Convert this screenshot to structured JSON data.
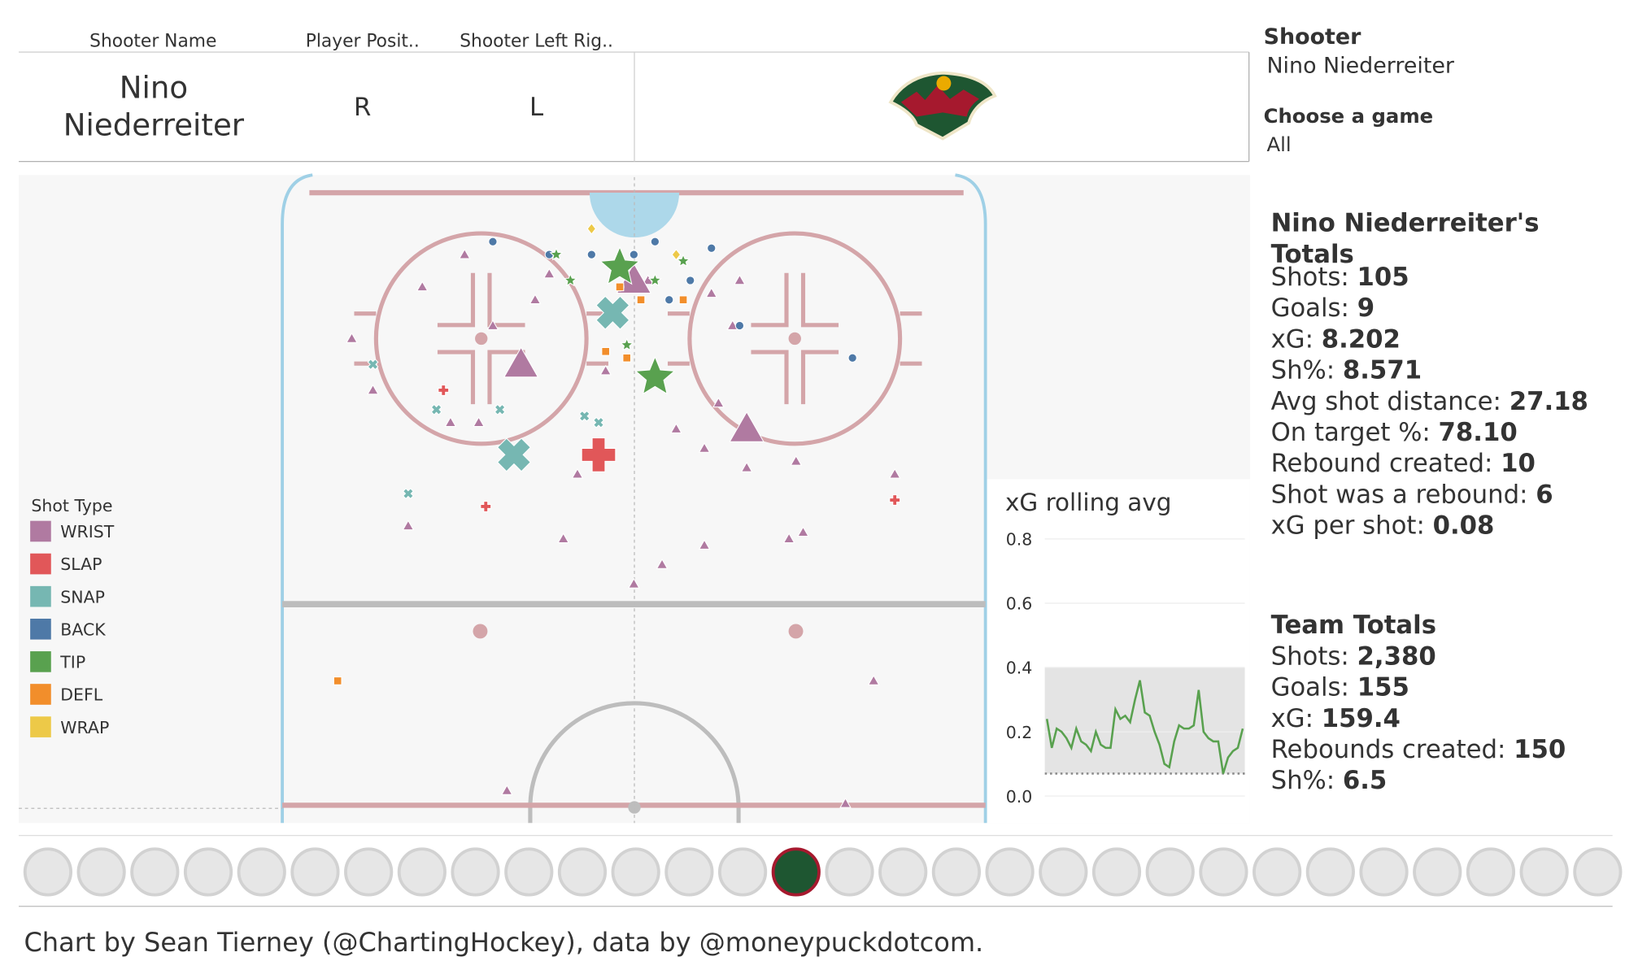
{
  "header": {
    "columns": [
      "Shooter Name",
      "Player Posit..",
      "Shooter Left Rig.."
    ],
    "values": [
      "Nino Niederreiter",
      "R",
      "L"
    ]
  },
  "filters": [
    {
      "label": "Shooter",
      "value": "Nino Niederreiter"
    },
    {
      "label": "Choose a game",
      "value": "All"
    }
  ],
  "player_totals": {
    "title": "Nino Niederreiter's Totals",
    "items": [
      {
        "label": "Shots:",
        "value": "105"
      },
      {
        "label": "Goals:",
        "value": "9"
      },
      {
        "label": "xG:",
        "value": "8.202"
      },
      {
        "label": "Sh%:",
        "value": "8.571"
      },
      {
        "label": "Avg shot distance:",
        "value": "27.18"
      },
      {
        "label": "On target %:",
        "value": "78.10"
      },
      {
        "label": "Rebound created:",
        "value": "10"
      },
      {
        "label": "Shot was a rebound:",
        "value": "6"
      },
      {
        "label": "xG per shot:",
        "value": "0.08"
      }
    ]
  },
  "team_totals": {
    "title": "Team Totals",
    "items": [
      {
        "label": "Shots:",
        "value": "2,380"
      },
      {
        "label": "Goals:",
        "value": "155"
      },
      {
        "label": "xG:",
        "value": "159.4"
      },
      {
        "label": "Rebounds created:",
        "value": "150"
      },
      {
        "label": "Sh%:",
        "value": "6.5"
      }
    ]
  },
  "footer": "Chart by Sean Tierney (@ChartingHockey), data by @moneypuckdotcom.",
  "chart_data": [
    {
      "type": "scatter",
      "legend_title": "Shot Type",
      "xlim": [
        0,
        100
      ],
      "ylim": [
        100,
        0
      ],
      "series": [
        {
          "name": "WRIST",
          "color": "#b07aa1",
          "marker": "triangle",
          "x": [
            26,
            20,
            36,
            38,
            10,
            13,
            30,
            28,
            24,
            42,
            40,
            18,
            48,
            52,
            61,
            65,
            64,
            62,
            56,
            60,
            66,
            73,
            72,
            74,
            87,
            54,
            60,
            50,
            46,
            32,
            80,
            84,
            49,
            34,
            66,
            50
          ],
          "y": [
            12,
            17,
            19,
            15,
            25,
            33,
            23,
            38,
            38,
            46,
            56,
            54,
            12,
            16,
            18,
            16,
            23,
            35,
            39,
            42,
            45,
            44,
            56,
            55,
            46,
            60,
            57,
            63,
            30,
            95,
            97,
            78,
            15,
            29,
            39,
            16
          ],
          "sizes": [
            1,
            1,
            1,
            1,
            1,
            1,
            1,
            1,
            1,
            1,
            1,
            1,
            1,
            1,
            1,
            1,
            1,
            1,
            1,
            1,
            1,
            1,
            1,
            1,
            1,
            1,
            1,
            1,
            1,
            1,
            1,
            1,
            1,
            4,
            4,
            4
          ]
        },
        {
          "name": "SLAP",
          "color": "#e15759",
          "marker": "plus",
          "x": [
            23,
            29,
            87,
            45
          ],
          "y": [
            33,
            51,
            50,
            43
          ],
          "sizes": [
            1,
            1,
            1,
            4
          ]
        },
        {
          "name": "SNAP",
          "color": "#76b7b2",
          "marker": "cross",
          "x": [
            13,
            22,
            31,
            43,
            45,
            18,
            33,
            47
          ],
          "y": [
            29,
            36,
            36,
            37,
            38,
            49,
            43,
            21
          ],
          "sizes": [
            1,
            1,
            1,
            1,
            1,
            1,
            4,
            4
          ]
        },
        {
          "name": "BACK",
          "color": "#4e79a7",
          "marker": "circle",
          "x": [
            30,
            38,
            44,
            50,
            53,
            61,
            58,
            55,
            65,
            81,
            48
          ],
          "y": [
            10,
            12,
            12,
            12,
            10,
            11,
            16,
            19,
            23,
            28,
            17
          ],
          "sizes": [
            1,
            1,
            1,
            1,
            1,
            1,
            1,
            1,
            1,
            1,
            1
          ]
        },
        {
          "name": "TIP",
          "color": "#59a14f",
          "marker": "star",
          "x": [
            39,
            41,
            49,
            57,
            53,
            48,
            53
          ],
          "y": [
            12,
            16,
            26,
            13,
            16,
            14,
            31
          ],
          "sizes": [
            1,
            1,
            1,
            1,
            1,
            4,
            4
          ]
        },
        {
          "name": "DEFL",
          "color": "#f28e2b",
          "marker": "square",
          "x": [
            48,
            51,
            57,
            46,
            49,
            8
          ],
          "y": [
            17,
            19,
            19,
            27,
            28,
            78
          ],
          "sizes": [
            1,
            1,
            1,
            1,
            1,
            1
          ]
        },
        {
          "name": "WRAP",
          "color": "#edc948",
          "marker": "diamond",
          "x": [
            44,
            56
          ],
          "y": [
            8,
            12
          ],
          "sizes": [
            1,
            1
          ]
        }
      ]
    },
    {
      "type": "line",
      "title": "xG rolling avg",
      "color": "#59a14f",
      "ylim": [
        -0.035,
        0.84
      ],
      "yticks": [
        {
          "value": 0,
          "label": "0.0"
        },
        0.2,
        0.4,
        0.6,
        0.8
      ],
      "grid": true,
      "band": [
        0.07,
        0.4
      ],
      "reference_line": 0.07,
      "values": [
        0.24,
        0.15,
        0.21,
        0.2,
        0.18,
        0.15,
        0.21,
        0.17,
        0.16,
        0.14,
        0.2,
        0.16,
        0.15,
        0.15,
        0.27,
        0.24,
        0.25,
        0.23,
        0.3,
        0.36,
        0.26,
        0.25,
        0.2,
        0.16,
        0.1,
        0.09,
        0.17,
        0.22,
        0.21,
        0.21,
        0.22,
        0.33,
        0.2,
        0.18,
        0.17,
        0.17,
        0.07,
        0.12,
        0.14,
        0.15,
        0.21
      ]
    }
  ]
}
